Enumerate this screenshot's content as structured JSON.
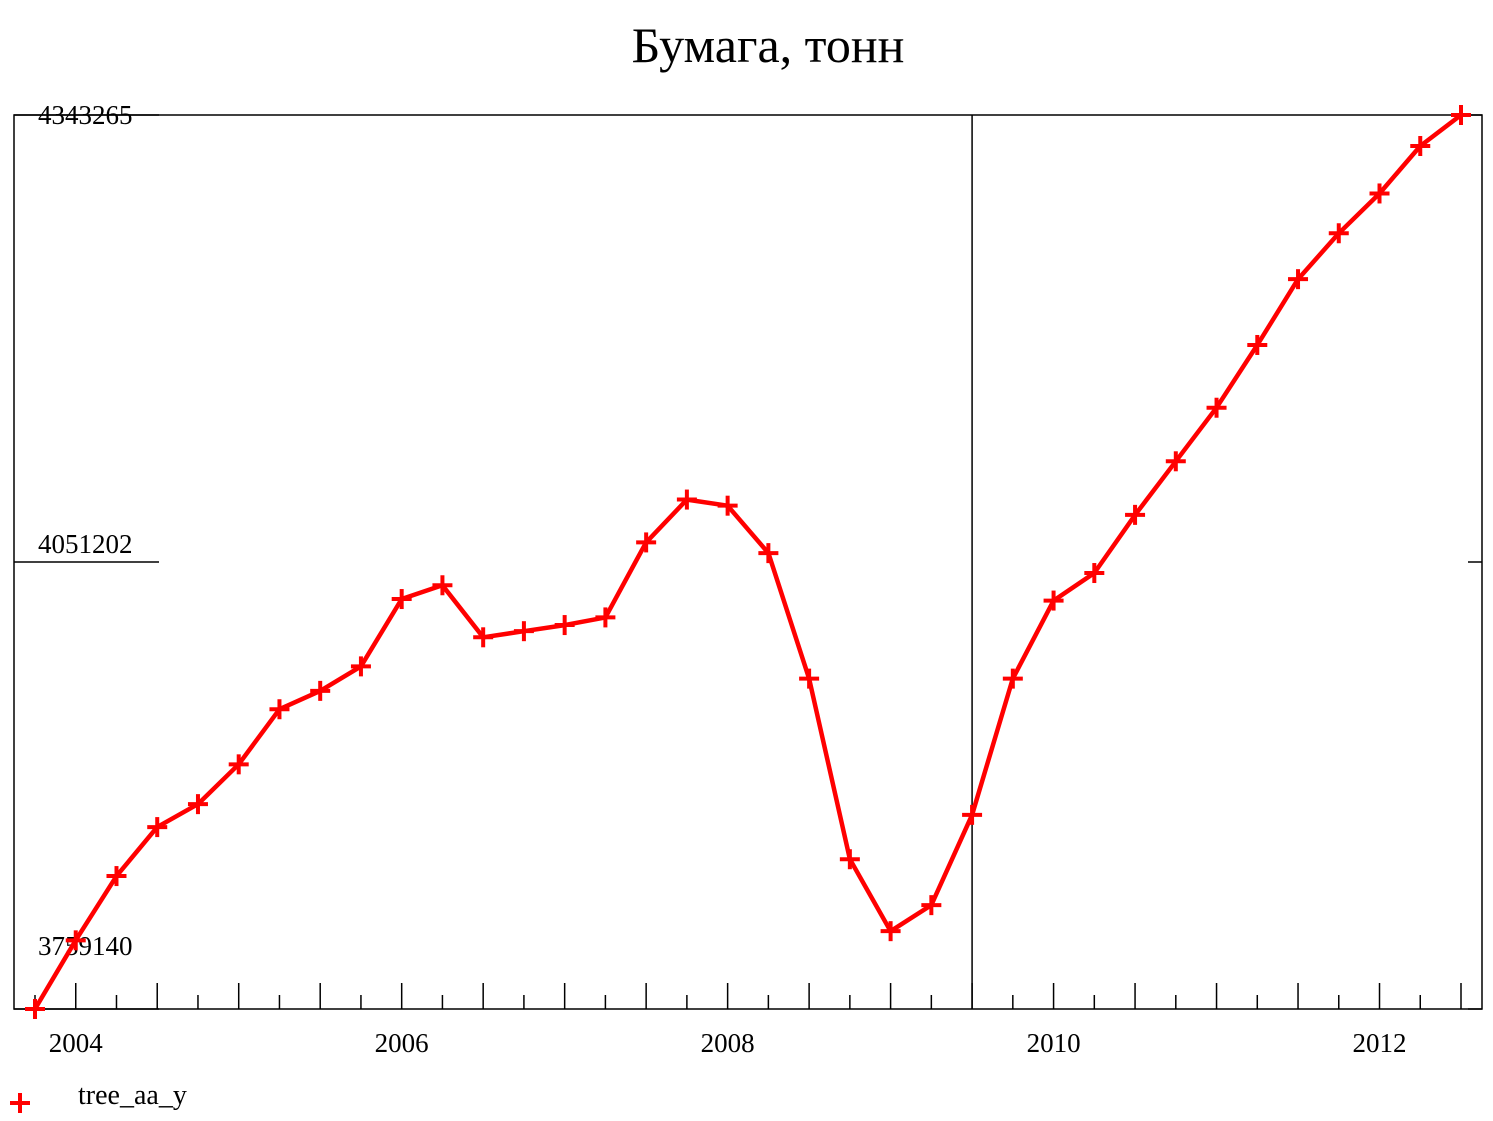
{
  "chart_data": {
    "type": "line",
    "title": "Бумага, тонн",
    "xlabel": "",
    "ylabel": "",
    "x_tick_labels": [
      "2004",
      "2006",
      "2008",
      "2010",
      "2012"
    ],
    "y_tick_labels": [
      "4343265",
      "4051202",
      "3759140"
    ],
    "xlim": [
      2003.75,
      2012.5
    ],
    "ylim": [
      3759140,
      4343265
    ],
    "legend_position": "bottom-left",
    "marker": "plus",
    "vertical_reference_line_x": 2009.5,
    "series": [
      {
        "name": "tree_aa_y",
        "color": "#ff0000",
        "x": [
          2003.75,
          2004.0,
          2004.25,
          2004.5,
          2004.75,
          2005.0,
          2005.25,
          2005.5,
          2005.75,
          2006.0,
          2006.25,
          2006.5,
          2006.75,
          2007.0,
          2007.25,
          2007.5,
          2007.75,
          2008.0,
          2008.25,
          2008.5,
          2008.75,
          2009.0,
          2009.25,
          2009.5,
          2009.75,
          2010.0,
          2010.25,
          2010.5,
          2010.75,
          2011.0,
          2011.25,
          2011.5,
          2011.75,
          2012.0,
          2012.25,
          2012.5
        ],
        "values": [
          3759140,
          3804000,
          3846000,
          3878000,
          3893000,
          3919000,
          3955000,
          3967000,
          3983000,
          4027000,
          4036000,
          4002000,
          4006000,
          4010000,
          4015000,
          4064000,
          4092000,
          4088000,
          4057000,
          3975000,
          3857000,
          3810000,
          3827000,
          3886000,
          3975000,
          4026000,
          4044000,
          4082000,
          4117000,
          4152000,
          4193000,
          4236000,
          4266000,
          4292000,
          4323000,
          4343265
        ]
      }
    ]
  }
}
